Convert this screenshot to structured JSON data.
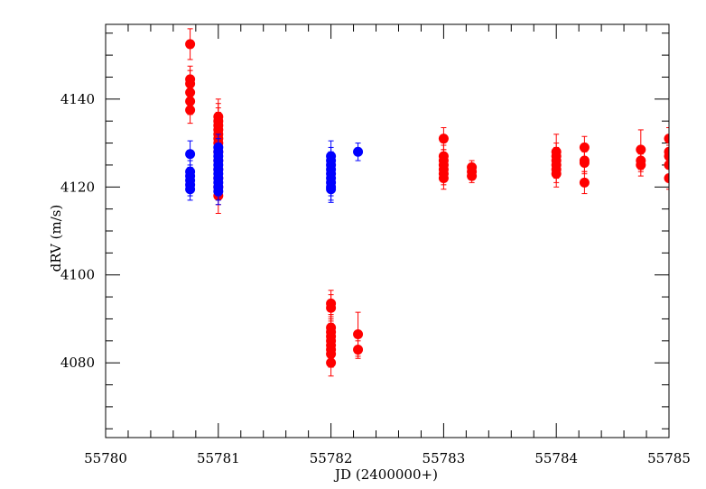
{
  "chart_data": {
    "type": "scatter",
    "xlabel": "JD (2400000+)",
    "ylabel": "dRV (m/s)",
    "xlim": [
      55780,
      55785
    ],
    "ylim": [
      4063,
      4157
    ],
    "x_ticks": [
      "55780",
      "55781",
      "55782",
      "55783",
      "55784",
      "55785"
    ],
    "y_ticks": [
      "4080",
      "4100",
      "4120",
      "4140"
    ],
    "x_tick_values": [
      55780,
      55781,
      55782,
      55783,
      55784,
      55785
    ],
    "y_tick_values": [
      4080,
      4100,
      4120,
      4140
    ],
    "series": [
      {
        "color": "#ff0000",
        "points": [
          [
            55780.75,
            4152.5,
            3.5
          ],
          [
            55780.75,
            4144.5,
            3
          ],
          [
            55780.75,
            4143.5,
            3
          ],
          [
            55780.75,
            4141.5,
            3
          ],
          [
            55780.75,
            4139.5,
            3
          ],
          [
            55780.75,
            4137.5,
            3
          ],
          [
            55781.0,
            4136,
            4
          ],
          [
            55781.0,
            4135,
            4
          ],
          [
            55781.0,
            4134,
            4
          ],
          [
            55781.0,
            4133,
            4
          ],
          [
            55781.0,
            4132,
            4
          ],
          [
            55781.0,
            4131,
            4
          ],
          [
            55781.0,
            4130,
            4
          ],
          [
            55781.0,
            4128,
            4
          ],
          [
            55781.0,
            4126,
            4
          ],
          [
            55781.0,
            4124,
            4
          ],
          [
            55781.0,
            4122,
            4
          ],
          [
            55781.0,
            4120,
            4
          ],
          [
            55781.0,
            4118,
            4
          ],
          [
            55782.0,
            4093.5,
            3
          ],
          [
            55782.0,
            4092.5,
            3
          ],
          [
            55782.0,
            4088,
            3
          ],
          [
            55782.0,
            4087,
            3
          ],
          [
            55782.0,
            4086,
            3
          ],
          [
            55782.0,
            4085,
            3
          ],
          [
            55782.0,
            4084,
            3
          ],
          [
            55782.0,
            4083,
            3
          ],
          [
            55782.0,
            4082,
            3
          ],
          [
            55782.0,
            4080,
            3
          ],
          [
            55782.24,
            4086.5,
            5
          ],
          [
            55782.24,
            4083,
            2
          ],
          [
            55783.0,
            4131,
            2.5
          ],
          [
            55783.0,
            4127,
            2.5
          ],
          [
            55783.0,
            4126,
            2.5
          ],
          [
            55783.0,
            4125,
            2.5
          ],
          [
            55783.0,
            4124,
            2.5
          ],
          [
            55783.0,
            4123,
            2.5
          ],
          [
            55783.0,
            4122,
            2.5
          ],
          [
            55783.25,
            4124.5,
            1.5
          ],
          [
            55783.25,
            4123.5,
            1.5
          ],
          [
            55783.25,
            4122.5,
            1.5
          ],
          [
            55784.0,
            4128,
            4
          ],
          [
            55784.0,
            4127,
            3
          ],
          [
            55784.0,
            4126,
            3
          ],
          [
            55784.0,
            4125,
            3
          ],
          [
            55784.0,
            4124,
            3
          ],
          [
            55784.0,
            4123,
            3
          ],
          [
            55784.25,
            4129,
            2.5
          ],
          [
            55784.25,
            4126,
            2.5
          ],
          [
            55784.25,
            4125.5,
            2.5
          ],
          [
            55784.25,
            4121,
            2.5
          ],
          [
            55784.75,
            4128.5,
            4.5
          ],
          [
            55784.75,
            4126,
            2.5
          ],
          [
            55784.75,
            4125,
            2.5
          ],
          [
            55785.0,
            4131,
            2.5
          ],
          [
            55785.0,
            4128,
            2.5
          ],
          [
            55785.0,
            4127,
            2.5
          ],
          [
            55785.0,
            4125,
            2.5
          ],
          [
            55785.0,
            4122,
            2.5
          ]
        ]
      },
      {
        "color": "#0000ff",
        "points": [
          [
            55780.75,
            4127.5,
            3
          ],
          [
            55780.75,
            4123.5,
            2.5
          ],
          [
            55780.75,
            4122.5,
            2.5
          ],
          [
            55780.75,
            4121.5,
            2.5
          ],
          [
            55780.75,
            4120.5,
            2.5
          ],
          [
            55780.75,
            4119.5,
            2.5
          ],
          [
            55781.0,
            4129,
            3
          ],
          [
            55781.0,
            4128,
            3
          ],
          [
            55781.0,
            4127,
            3
          ],
          [
            55781.0,
            4126,
            3
          ],
          [
            55781.0,
            4125,
            3
          ],
          [
            55781.0,
            4124,
            3
          ],
          [
            55781.0,
            4123,
            3
          ],
          [
            55781.0,
            4122,
            3
          ],
          [
            55781.0,
            4121,
            3
          ],
          [
            55781.0,
            4120,
            3
          ],
          [
            55781.0,
            4119,
            3
          ],
          [
            55782.0,
            4127,
            3.5
          ],
          [
            55782.0,
            4126,
            3
          ],
          [
            55782.0,
            4125,
            3
          ],
          [
            55782.0,
            4124,
            3
          ],
          [
            55782.0,
            4123,
            3
          ],
          [
            55782.0,
            4122,
            3
          ],
          [
            55782.0,
            4121,
            3
          ],
          [
            55782.0,
            4120,
            3
          ],
          [
            55782.0,
            4119.5,
            3
          ],
          [
            55782.24,
            4128,
            2
          ]
        ]
      }
    ]
  }
}
